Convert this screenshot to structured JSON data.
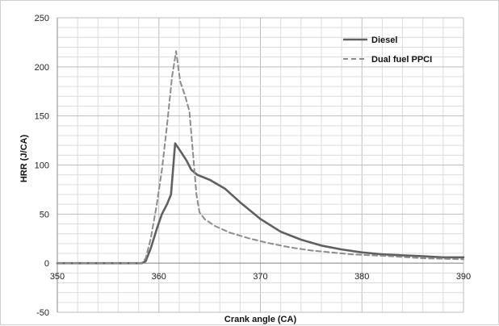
{
  "chart_data": {
    "type": "line",
    "title": "",
    "xlabel": "Crank angle (CA)",
    "ylabel": "HRR (J/CA)",
    "xlim": [
      350,
      390
    ],
    "ylim": [
      -50,
      250
    ],
    "xticks": [
      350,
      360,
      370,
      380,
      390
    ],
    "yticks": [
      -50,
      0,
      50,
      100,
      150,
      200,
      250
    ],
    "x_minor_step": 2,
    "y_minor_step": 10,
    "grid": true,
    "legend_position": "top-right",
    "series": [
      {
        "name": "Diesel",
        "style": "solid",
        "color": "#606060",
        "points": [
          [
            350,
            0
          ],
          [
            358.3,
            0
          ],
          [
            358.7,
            2
          ],
          [
            359.2,
            15
          ],
          [
            359.8,
            35
          ],
          [
            360.3,
            50
          ],
          [
            360.8,
            60
          ],
          [
            361.2,
            70
          ],
          [
            361.6,
            122
          ],
          [
            362.2,
            113
          ],
          [
            362.7,
            105
          ],
          [
            363.2,
            95
          ],
          [
            363.8,
            90
          ],
          [
            365,
            85
          ],
          [
            366.5,
            76
          ],
          [
            368,
            62
          ],
          [
            370,
            45
          ],
          [
            372,
            32
          ],
          [
            374,
            24
          ],
          [
            376,
            18
          ],
          [
            378,
            14
          ],
          [
            380,
            11
          ],
          [
            382,
            9
          ],
          [
            384,
            8
          ],
          [
            386,
            7
          ],
          [
            388,
            6
          ],
          [
            390,
            6
          ]
        ]
      },
      {
        "name": "Dual fuel PPCI",
        "style": "dashed",
        "color": "#8c8c8c",
        "points": [
          [
            350,
            0
          ],
          [
            358.3,
            0
          ],
          [
            358.7,
            5
          ],
          [
            359.2,
            25
          ],
          [
            359.8,
            60
          ],
          [
            360.3,
            95
          ],
          [
            360.8,
            140
          ],
          [
            361.3,
            190
          ],
          [
            361.7,
            216
          ],
          [
            362.1,
            185
          ],
          [
            362.6,
            170
          ],
          [
            363,
            155
          ],
          [
            363.3,
            120
          ],
          [
            363.7,
            70
          ],
          [
            364,
            52
          ],
          [
            364.5,
            45
          ],
          [
            365.5,
            38
          ],
          [
            367,
            31
          ],
          [
            369,
            25
          ],
          [
            371,
            20
          ],
          [
            373,
            16
          ],
          [
            375,
            13
          ],
          [
            377,
            11
          ],
          [
            379,
            9
          ],
          [
            381,
            8
          ],
          [
            383,
            7
          ],
          [
            386,
            5
          ],
          [
            390,
            4
          ]
        ]
      }
    ]
  }
}
